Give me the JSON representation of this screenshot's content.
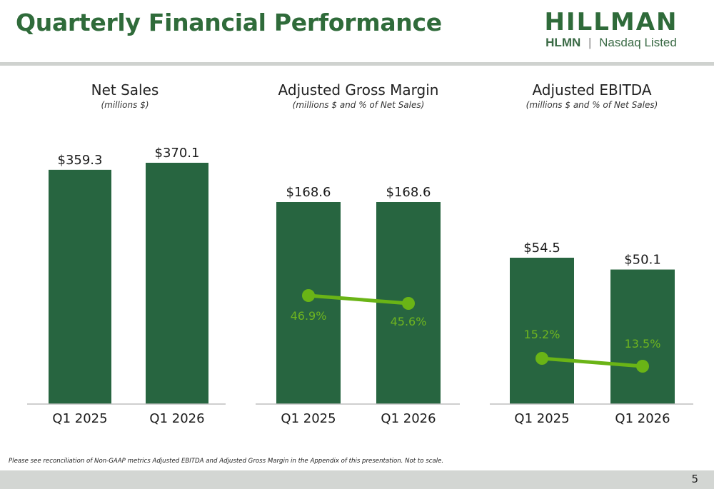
{
  "header": {
    "title": "Quarterly Financial Performance",
    "logo": {
      "wordmark": "HILLMAN",
      "ticker": "HLMN",
      "exchange": "Nasdaq Listed",
      "separator": "|"
    }
  },
  "colors": {
    "bar": "#276540",
    "line": "#6ab416",
    "title": "#2f6b3a",
    "axis": "#bfbfbf"
  },
  "chart_data": [
    {
      "type": "bar",
      "title": "Net Sales",
      "subtitle": "(millions $)",
      "categories": [
        "Q1 2025",
        "Q1 2026"
      ],
      "series": [
        {
          "values": [
            359.3,
            370.1
          ],
          "labels": [
            "$359.3",
            "$370.1"
          ]
        }
      ]
    },
    {
      "type": "bar",
      "title": "Adjusted Gross Margin",
      "subtitle": "(millions $ and % of Net Sales)",
      "categories": [
        "Q1 2025",
        "Q1 2026"
      ],
      "series": [
        {
          "values": [
            168.6,
            168.6
          ],
          "labels": [
            "$168.6",
            "$168.6"
          ]
        },
        {
          "type": "line",
          "values": [
            46.9,
            45.6
          ],
          "labels": [
            "46.9%",
            "45.6%"
          ]
        }
      ]
    },
    {
      "type": "bar",
      "title": "Adjusted EBITDA",
      "subtitle": "(millions $ and % of Net Sales)",
      "categories": [
        "Q1 2025",
        "Q1 2026"
      ],
      "series": [
        {
          "values": [
            54.5,
            50.1
          ],
          "labels": [
            "$54.5",
            "$50.1"
          ]
        },
        {
          "type": "line",
          "values": [
            15.2,
            13.5
          ],
          "labels": [
            "15.2%",
            "13.5%"
          ]
        }
      ]
    }
  ],
  "footer": {
    "note": "Please see reconciliation of Non-GAAP metrics Adjusted EBITDA and Adjusted Gross Margin in the Appendix of this presentation. Not to scale.",
    "page_number": "5"
  }
}
